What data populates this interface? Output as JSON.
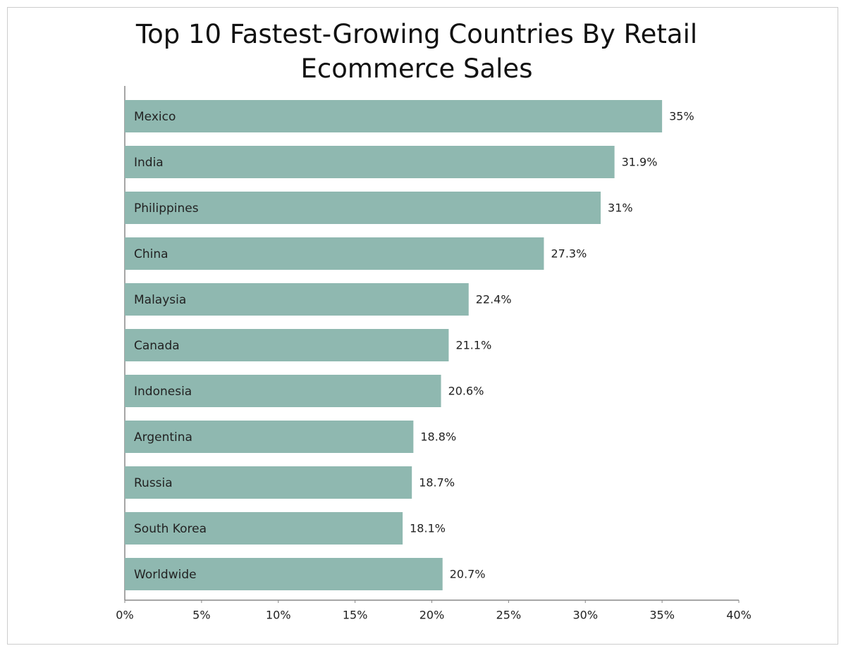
{
  "chart_data": {
    "type": "barh",
    "title": "Top 10 Fastest-Growing Countries By Retail Ecommerce Sales",
    "categories": [
      "Mexico",
      "India",
      "Philippines",
      "China",
      "Malaysia",
      "Canada",
      "Indonesia",
      "Argentina",
      "Russia",
      "South Korea",
      "Worldwide"
    ],
    "values": [
      35,
      31.9,
      31,
      27.3,
      22.4,
      21.1,
      20.6,
      18.8,
      18.7,
      18.1,
      20.7
    ],
    "value_labels": [
      "35%",
      "31.9%",
      "31%",
      "27.3%",
      "22.4%",
      "21.1%",
      "20.6%",
      "18.8%",
      "18.7%",
      "18.1%",
      "20.7%"
    ],
    "color": "#8fb8b0",
    "xlim": [
      0,
      40
    ],
    "xticks": [
      {
        "value": 0,
        "label": "0%"
      },
      {
        "value": 5,
        "label": "5%"
      },
      {
        "value": 10,
        "label": "10%"
      },
      {
        "value": 15,
        "label": "15%"
      },
      {
        "value": 20,
        "label": "20%"
      },
      {
        "value": 25,
        "label": "25%"
      },
      {
        "value": 30,
        "label": "30%"
      },
      {
        "value": 35,
        "label": "35%"
      },
      {
        "value": 40,
        "label": "40%"
      }
    ],
    "grid": false
  }
}
